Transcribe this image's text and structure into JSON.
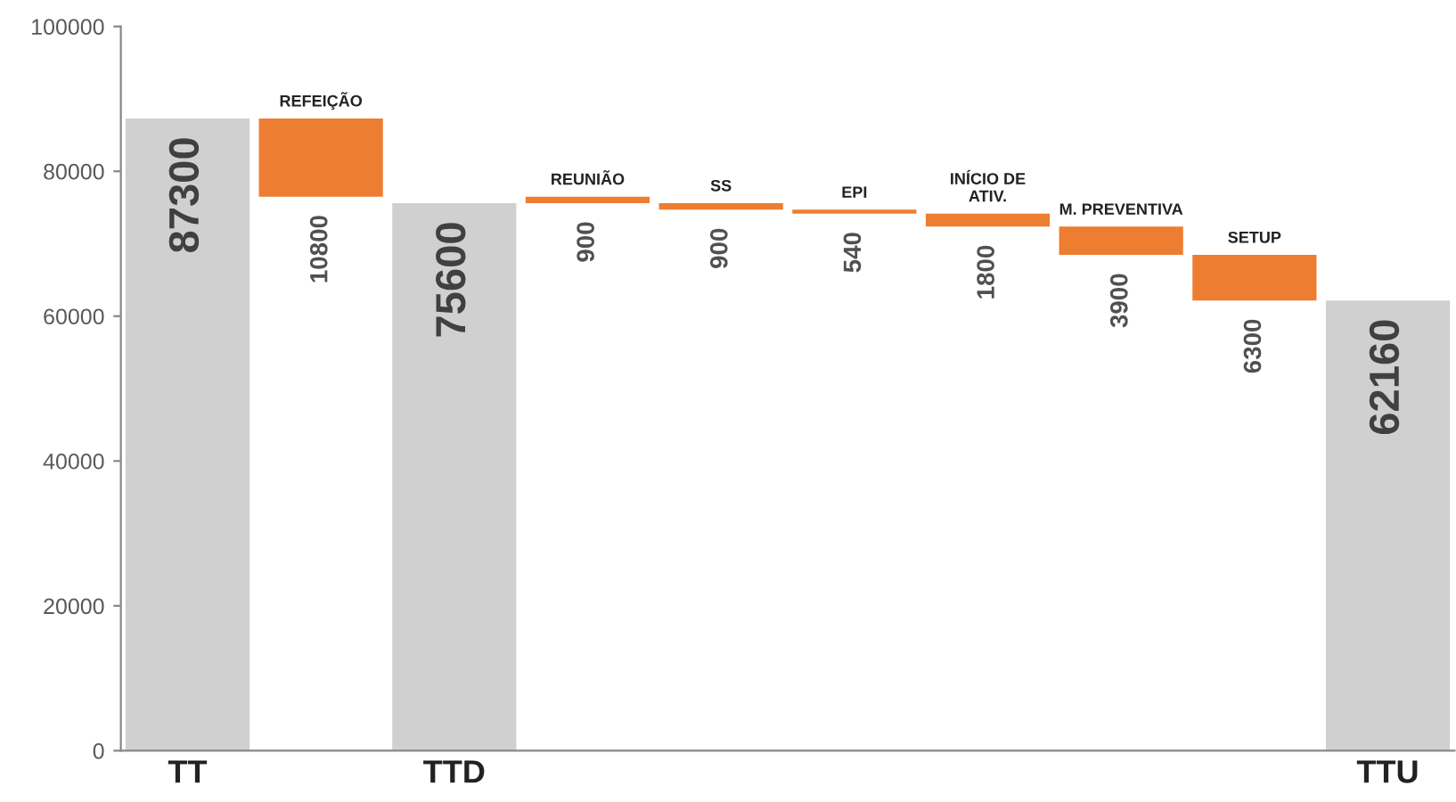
{
  "chart_data": {
    "type": "bar",
    "categories": [
      "TT",
      "REFEIÇÃO",
      "TTD",
      "REUNIÃO",
      "SS",
      "EPI",
      "INÍCIO DE\nATIV.",
      "M. PREVENTIVA",
      "SETUP",
      "TTU"
    ],
    "values": [
      87300,
      10800,
      75600,
      900,
      900,
      540,
      1800,
      3900,
      6300,
      62160
    ],
    "base": [
      0,
      76500,
      0,
      75600,
      74700,
      74160,
      72360,
      68460,
      62160,
      0
    ],
    "colors": [
      "#d0d0d0",
      "#ed7d31",
      "#d0d0d0",
      "#ed7d31",
      "#ed7d31",
      "#ed7d31",
      "#ed7d31",
      "#ed7d31",
      "#ed7d31",
      "#d0d0d0"
    ],
    "data_labels": true,
    "ylim": [
      0,
      100000
    ],
    "yticks": [
      0,
      20000,
      40000,
      60000,
      80000,
      100000
    ],
    "grid": false,
    "legend": false
  }
}
